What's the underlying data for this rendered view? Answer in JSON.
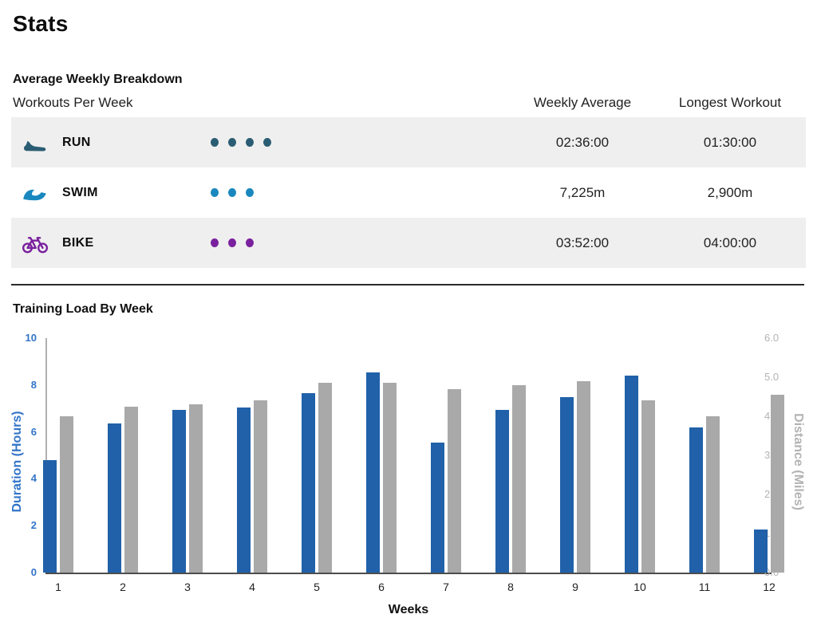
{
  "page": {
    "title": "Stats"
  },
  "breakdown": {
    "heading": "Average Weekly Breakdown",
    "columns": {
      "workouts": "Workouts Per Week",
      "weekly_average": "Weekly Average",
      "longest_workout": "Longest Workout"
    },
    "rows": [
      {
        "sport": "RUN",
        "icon": "run-shoe-icon",
        "color": "#2a5d73",
        "workouts_per_week": 4,
        "weekly_average": "02:36:00",
        "longest_workout": "01:30:00"
      },
      {
        "sport": "SWIM",
        "icon": "swim-wave-icon",
        "color": "#1a88bf",
        "workouts_per_week": 3,
        "weekly_average": "7,225m",
        "longest_workout": "2,900m"
      },
      {
        "sport": "BIKE",
        "icon": "bike-icon",
        "color": "#79219e",
        "workouts_per_week": 3,
        "weekly_average": "03:52:00",
        "longest_workout": "04:00:00"
      }
    ]
  },
  "chart_data": {
    "type": "bar",
    "title": "Training Load By Week",
    "categories": [
      "1",
      "2",
      "3",
      "4",
      "5",
      "6",
      "7",
      "8",
      "9",
      "10",
      "11",
      "12"
    ],
    "series": [
      {
        "name": "Duration",
        "axis": "left",
        "color": "#2061a9",
        "values": [
          4.8,
          6.35,
          6.95,
          7.05,
          7.65,
          8.55,
          5.55,
          6.95,
          7.5,
          8.4,
          6.2,
          1.85
        ]
      },
      {
        "name": "Distance",
        "axis": "right",
        "color": "#a9a9a9",
        "values": [
          4.0,
          4.25,
          4.3,
          4.4,
          4.85,
          4.85,
          4.7,
          4.8,
          4.9,
          4.4,
          4.0,
          4.55
        ]
      }
    ],
    "xlabel": "Weeks",
    "ylabel_left": "Duration (Hours)",
    "ylabel_right": "Distance (Miles)",
    "ylim_left": [
      0,
      10
    ],
    "ylim_right": [
      0,
      6
    ],
    "yticks_left": [
      "0",
      "2",
      "4",
      "6",
      "8",
      "10"
    ],
    "yticks_right": [
      "0.0",
      "1.0",
      "2.0",
      "3.0",
      "4.0",
      "5.0",
      "6.0"
    ],
    "legend": "none",
    "grid": false
  },
  "colors": {
    "bar_duration": "#2061a9",
    "bar_distance": "#a9a9a9",
    "axis_left_text": "#3274c8",
    "axis_right_text": "#b3b3b3",
    "row_stripe": "#f0efef",
    "divider": "#2b2b2b"
  }
}
